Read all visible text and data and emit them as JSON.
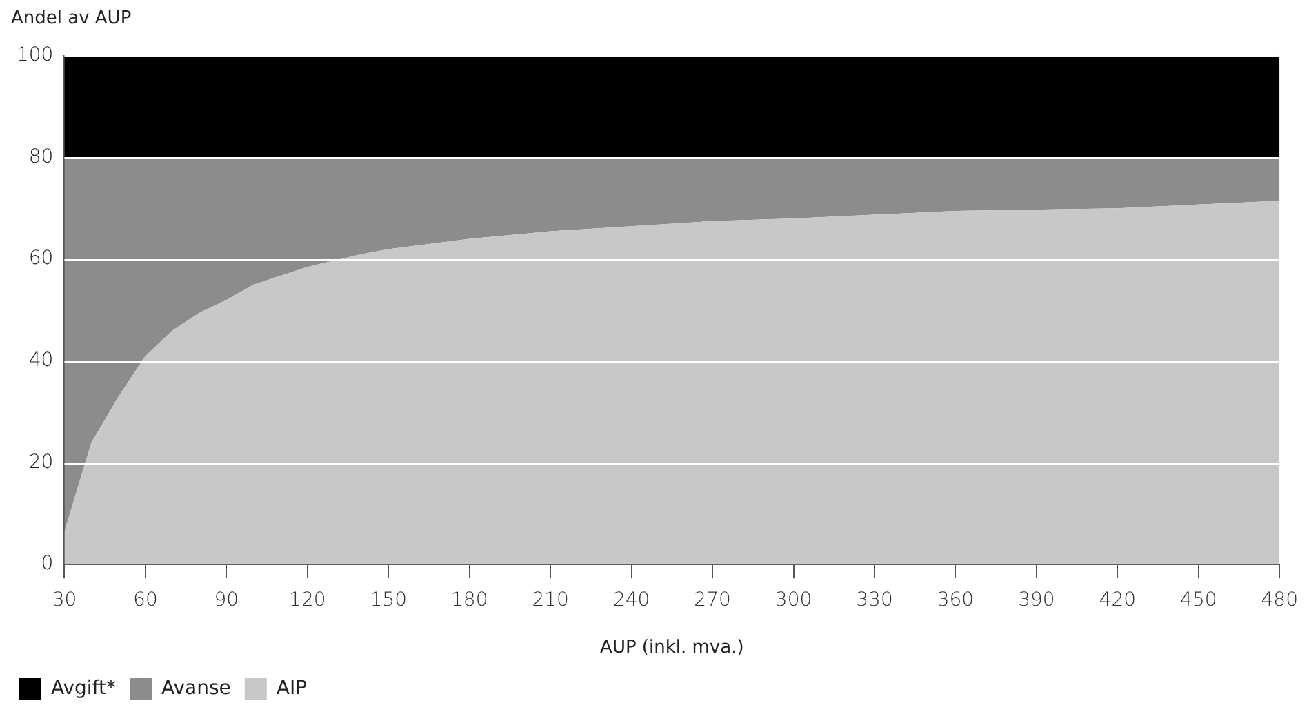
{
  "chart_data": {
    "type": "area",
    "stacked": true,
    "ylabel": "Andel av AUP",
    "xlabel": "AUP (inkl. mva.)",
    "x": [
      30,
      40,
      50,
      60,
      70,
      80,
      90,
      100,
      120,
      140,
      150,
      180,
      210,
      240,
      270,
      300,
      360,
      420,
      480
    ],
    "series": [
      {
        "name": "AIP",
        "color": "#c8c8c8",
        "values": [
          6.5,
          24,
          33,
          41,
          46,
          49.5,
          52,
          55,
          58.5,
          61,
          62,
          64,
          65.5,
          66.5,
          67.5,
          68,
          69.5,
          70,
          71.5
        ]
      },
      {
        "name": "Avanse",
        "color": "#8c8c8c",
        "values": [
          73.5,
          56,
          47,
          39,
          34,
          30.5,
          28,
          25,
          21.5,
          19,
          18,
          16,
          14.5,
          13.5,
          12.5,
          12,
          10.5,
          10,
          8.5
        ]
      },
      {
        "name": "Avgift*",
        "color": "#000000",
        "values": [
          20,
          20,
          20,
          20,
          20,
          20,
          20,
          20,
          20,
          20,
          20,
          20,
          20,
          20,
          20,
          20,
          20,
          20,
          20
        ]
      }
    ],
    "xlim": [
      30,
      480
    ],
    "xticks": [
      30,
      60,
      90,
      120,
      150,
      180,
      210,
      240,
      270,
      300,
      330,
      360,
      390,
      420,
      450,
      480
    ],
    "ylim": [
      0,
      100
    ],
    "yticks": [
      0,
      20,
      40,
      60,
      80,
      100
    ],
    "grid": "y",
    "legend": "bottom left",
    "marker": "none"
  }
}
